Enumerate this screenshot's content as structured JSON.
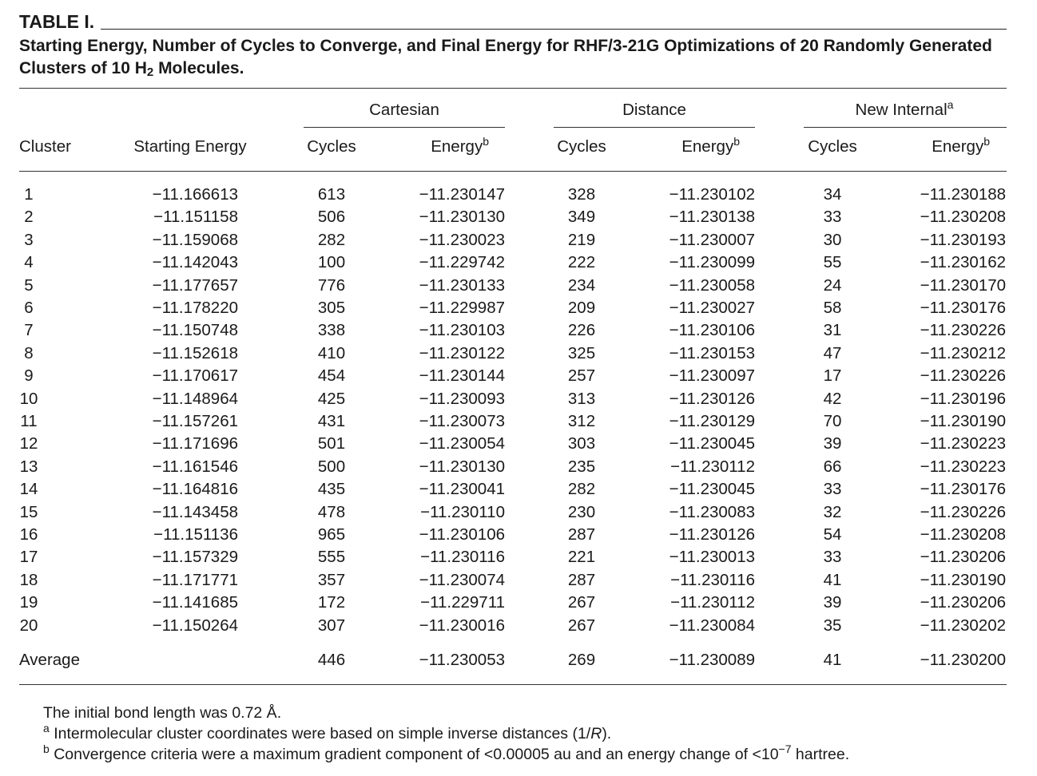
{
  "table_label": "TABLE I.",
  "caption": {
    "prefix": "Starting Energy, Number of Cycles to Converge, and Final Energy for RHF/3-21G Optimizations of 20 Randomly Generated Clusters of 10 H",
    "subscript": "2",
    "suffix": " Molecules."
  },
  "group_headers": {
    "cartesian": "Cartesian",
    "distance": "Distance",
    "new_internal": "New Internal",
    "new_internal_note": "a"
  },
  "column_headers": {
    "cluster": "Cluster",
    "starting_energy": "Starting Energy",
    "cycles": "Cycles",
    "energy": "Energy",
    "energy_note": "b"
  },
  "rows": [
    [
      "1",
      "−11.166613",
      "613",
      "−11.230147",
      "328",
      "−11.230102",
      "34",
      "−11.230188"
    ],
    [
      "2",
      "−11.151158",
      "506",
      "−11.230130",
      "349",
      "−11.230138",
      "33",
      "−11.230208"
    ],
    [
      "3",
      "−11.159068",
      "282",
      "−11.230023",
      "219",
      "−11.230007",
      "30",
      "−11.230193"
    ],
    [
      "4",
      "−11.142043",
      "100",
      "−11.229742",
      "222",
      "−11.230099",
      "55",
      "−11.230162"
    ],
    [
      "5",
      "−11.177657",
      "776",
      "−11.230133",
      "234",
      "−11.230058",
      "24",
      "−11.230170"
    ],
    [
      "6",
      "−11.178220",
      "305",
      "−11.229987",
      "209",
      "−11.230027",
      "58",
      "−11.230176"
    ],
    [
      "7",
      "−11.150748",
      "338",
      "−11.230103",
      "226",
      "−11.230106",
      "31",
      "−11.230226"
    ],
    [
      "8",
      "−11.152618",
      "410",
      "−11.230122",
      "325",
      "−11.230153",
      "47",
      "−11.230212"
    ],
    [
      "9",
      "−11.170617",
      "454",
      "−11.230144",
      "257",
      "−11.230097",
      "17",
      "−11.230226"
    ],
    [
      "10",
      "−11.148964",
      "425",
      "−11.230093",
      "313",
      "−11.230126",
      "42",
      "−11.230196"
    ],
    [
      "11",
      "−11.157261",
      "431",
      "−11.230073",
      "312",
      "−11.230129",
      "70",
      "−11.230190"
    ],
    [
      "12",
      "−11.171696",
      "501",
      "−11.230054",
      "303",
      "−11.230045",
      "39",
      "−11.230223"
    ],
    [
      "13",
      "−11.161546",
      "500",
      "−11.230130",
      "235",
      "−11.230112",
      "66",
      "−11.230223"
    ],
    [
      "14",
      "−11.164816",
      "435",
      "−11.230041",
      "282",
      "−11.230045",
      "33",
      "−11.230176"
    ],
    [
      "15",
      "−11.143458",
      "478",
      "−11.230110",
      "230",
      "−11.230083",
      "32",
      "−11.230226"
    ],
    [
      "16",
      "−11.151136",
      "965",
      "−11.230106",
      "287",
      "−11.230126",
      "54",
      "−11.230208"
    ],
    [
      "17",
      "−11.157329",
      "555",
      "−11.230116",
      "221",
      "−11.230013",
      "33",
      "−11.230206"
    ],
    [
      "18",
      "−11.171771",
      "357",
      "−11.230074",
      "287",
      "−11.230116",
      "41",
      "−11.230190"
    ],
    [
      "19",
      "−11.141685",
      "172",
      "−11.229711",
      "267",
      "−11.230112",
      "39",
      "−11.230206"
    ],
    [
      "20",
      "−11.150264",
      "307",
      "−11.230016",
      "267",
      "−11.230084",
      "35",
      "−11.230202"
    ]
  ],
  "average": [
    "Average",
    "",
    "446",
    "−11.230053",
    "269",
    "−11.230089",
    "41",
    "−11.230200"
  ],
  "footnotes": {
    "general": "The initial bond length was 0.72 Å.",
    "a_mark": "a",
    "a_text": "Intermolecular cluster coordinates were based on simple inverse distances (1/",
    "a_italic": "R",
    "a_end": ").",
    "b_mark": "b",
    "b_text": "Convergence criteria were a maximum gradient component of <0.00005 au and an energy change of <10",
    "b_exp": "−7",
    "b_end": " hartree."
  }
}
